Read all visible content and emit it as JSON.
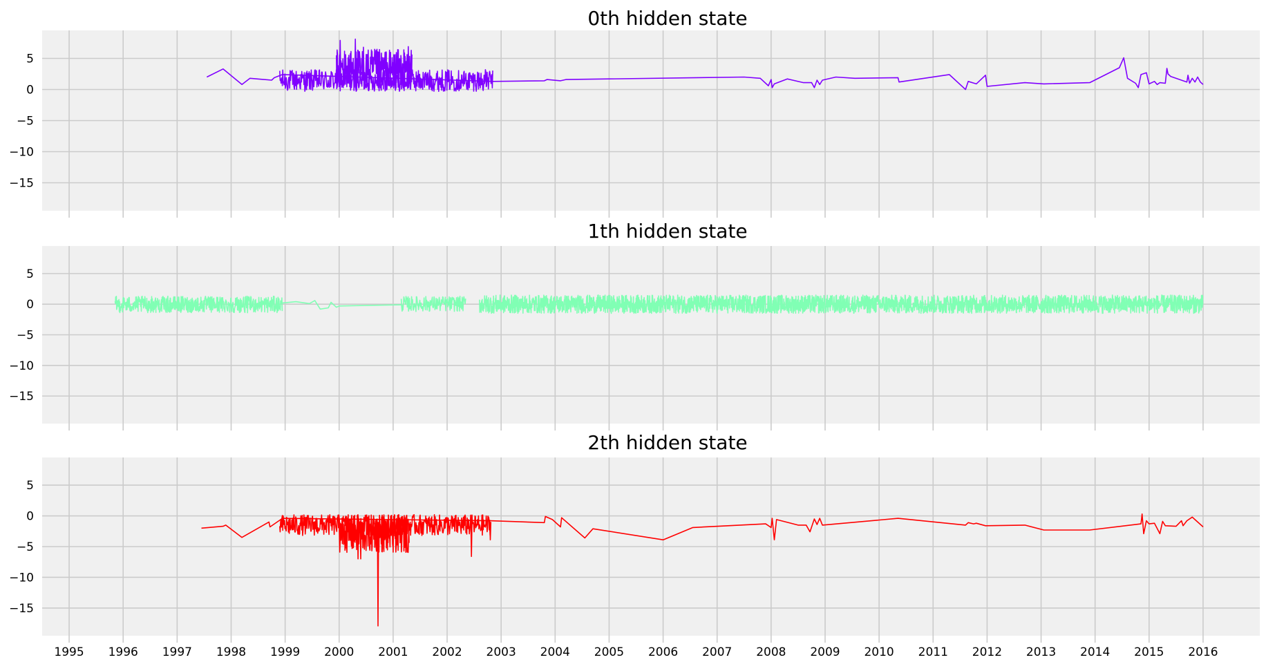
{
  "chart_data": [
    {
      "type": "line",
      "title": "0th hidden state",
      "color": "#8000ff",
      "ylim": [
        -19.5,
        9.5
      ],
      "yticks": [
        5,
        0,
        -5,
        -10,
        -15
      ],
      "ytick_labels": [
        "5",
        "0",
        "−5",
        "−10",
        "−15"
      ],
      "xlim": [
        1994.5,
        2017.05
      ],
      "xticks": [
        1995,
        1996,
        1997,
        1998,
        1999,
        2000,
        2001,
        2002,
        2003,
        2004,
        2005,
        2006,
        2007,
        2008,
        2009,
        2010,
        2011,
        2012,
        2013,
        2014,
        2015,
        2016
      ],
      "xtick_labels": [],
      "grid": true,
      "noise": [
        {
          "from": 1998.9,
          "to": 2002.85,
          "min": -0.3,
          "max": 3.2,
          "step": 0.008
        },
        {
          "from": 1999.95,
          "to": 2001.35,
          "min": -0.2,
          "max": 6.5,
          "step": 0.006
        }
      ],
      "spikes": [
        [
          2000.02,
          7.9
        ],
        [
          2000.3,
          8.1
        ],
        [
          2000.45,
          6.8
        ],
        [
          2000.75,
          5.9
        ],
        [
          2001.28,
          6.9
        ],
        [
          2000.18,
          5.5
        ]
      ],
      "x": [
        1997.55,
        1997.85,
        1998.2,
        1998.35,
        1998.75,
        1998.8,
        1998.95,
        2002.85,
        2003.8,
        2003.85,
        2004.1,
        2004.2,
        2007.5,
        2007.8,
        2007.95,
        2008.0,
        2008.02,
        2008.06,
        2008.3,
        2008.6,
        2008.75,
        2008.8,
        2008.85,
        2008.9,
        2008.95,
        2009.2,
        2009.55,
        2010.35,
        2010.37,
        2011.3,
        2011.6,
        2011.65,
        2011.8,
        2011.97,
        2012.0,
        2012.7,
        2013.05,
        2013.9,
        2014.45,
        2014.53,
        2014.6,
        2014.75,
        2014.8,
        2014.85,
        2014.95,
        2015.0,
        2015.1,
        2015.15,
        2015.2,
        2015.3,
        2015.33,
        2015.35,
        2015.4,
        2015.7,
        2015.72,
        2015.75,
        2015.8,
        2015.85,
        2015.9,
        2015.95,
        2016.0
      ],
      "y": [
        2.0,
        3.3,
        0.8,
        1.8,
        1.5,
        1.9,
        2.4,
        1.3,
        1.4,
        1.6,
        1.4,
        1.6,
        2.0,
        1.8,
        0.6,
        1.6,
        0.3,
        0.9,
        1.7,
        1.1,
        1.1,
        0.3,
        1.5,
        0.8,
        1.5,
        2.0,
        1.8,
        1.9,
        1.2,
        2.4,
        0.0,
        1.3,
        0.9,
        2.3,
        0.5,
        1.1,
        0.9,
        1.1,
        3.5,
        5.1,
        1.8,
        1.0,
        0.3,
        2.4,
        2.7,
        0.9,
        1.3,
        0.8,
        1.1,
        1.0,
        3.4,
        2.5,
        2.1,
        1.2,
        2.3,
        1.0,
        1.8,
        1.2,
        2.0,
        1.2,
        0.8
      ]
    },
    {
      "type": "line",
      "title": "1th hidden state",
      "color": "#80ffb4",
      "ylim": [
        -19.5,
        9.5
      ],
      "yticks": [
        5,
        0,
        -5,
        -10,
        -15
      ],
      "ytick_labels": [
        "5",
        "0",
        "−5",
        "−10",
        "−15"
      ],
      "xlim": [
        1994.5,
        2017.05
      ],
      "xticks": [
        1995,
        1996,
        1997,
        1998,
        1999,
        2000,
        2001,
        2002,
        2003,
        2004,
        2005,
        2006,
        2007,
        2008,
        2009,
        2010,
        2011,
        2012,
        2013,
        2014,
        2015,
        2016
      ],
      "xtick_labels": [],
      "grid": true,
      "noise": [
        {
          "from": 1995.85,
          "to": 1998.95,
          "min": -1.4,
          "max": 1.3,
          "step": 0.006
        },
        {
          "from": 2001.15,
          "to": 2002.35,
          "min": -1.2,
          "max": 1.3,
          "step": 0.008
        },
        {
          "from": 2002.6,
          "to": 2016.0,
          "min": -1.5,
          "max": 1.5,
          "step": 0.005
        }
      ],
      "spikes": [],
      "x": [
        1998.95,
        1999.2,
        1999.45,
        1999.55,
        1999.65,
        1999.8,
        1999.85,
        1999.95,
        2000.0,
        2001.15
      ],
      "y": [
        0.2,
        0.4,
        0.1,
        0.6,
        -0.8,
        -0.6,
        0.3,
        -0.5,
        -0.3,
        -0.1
      ]
    },
    {
      "type": "line",
      "title": "2th hidden state",
      "color": "#ff0000",
      "ylim": [
        -19.5,
        9.5
      ],
      "yticks": [
        5,
        0,
        -5,
        -10,
        -15
      ],
      "ytick_labels": [
        "5",
        "0",
        "−5",
        "−10",
        "−15"
      ],
      "xlim": [
        1994.5,
        2017.05
      ],
      "xticks": [
        1995,
        1996,
        1997,
        1998,
        1999,
        2000,
        2001,
        2002,
        2003,
        2004,
        2005,
        2006,
        2007,
        2008,
        2009,
        2010,
        2011,
        2012,
        2013,
        2014,
        2015,
        2016
      ],
      "xtick_labels": [
        "1995",
        "1996",
        "1997",
        "1998",
        "1999",
        "2000",
        "2001",
        "2002",
        "2003",
        "2004",
        "2005",
        "2006",
        "2007",
        "2008",
        "2009",
        "2010",
        "2011",
        "2012",
        "2013",
        "2014",
        "2015",
        "2016"
      ],
      "grid": true,
      "noise": [
        {
          "from": 1998.9,
          "to": 2002.8,
          "min": -3.2,
          "max": 0.2,
          "step": 0.008
        },
        {
          "from": 2000.0,
          "to": 2001.3,
          "min": -6.0,
          "max": 0.2,
          "step": 0.006
        }
      ],
      "spikes": [
        [
          2000.35,
          -7.0
        ],
        [
          2000.4,
          -7.0
        ],
        [
          2000.72,
          -17.9
        ],
        [
          2001.0,
          -5.9
        ],
        [
          2002.45,
          -6.6
        ],
        [
          2002.8,
          -3.9
        ]
      ],
      "x": [
        1997.45,
        1997.85,
        1997.9,
        1998.2,
        1998.7,
        1998.72,
        1998.95,
        2002.8,
        2003.8,
        2003.82,
        2003.95,
        2004.1,
        2004.12,
        2004.55,
        2004.7,
        2006.0,
        2006.55,
        2007.9,
        2008.0,
        2008.02,
        2008.06,
        2008.1,
        2008.5,
        2008.65,
        2008.72,
        2008.8,
        2008.85,
        2008.9,
        2008.95,
        2010.35,
        2011.6,
        2011.65,
        2011.75,
        2011.8,
        2011.97,
        2012.7,
        2013.05,
        2013.9,
        2014.85,
        2014.87,
        2014.9,
        2014.95,
        2015.0,
        2015.1,
        2015.2,
        2015.25,
        2015.3,
        2015.5,
        2015.6,
        2015.63,
        2015.7,
        2015.8,
        2015.85,
        2016.0
      ],
      "y": [
        -2.0,
        -1.7,
        -1.5,
        -3.5,
        -1.0,
        -1.8,
        -0.4,
        -0.8,
        -1.1,
        -0.1,
        -0.6,
        -1.8,
        -0.3,
        -3.6,
        -2.1,
        -3.9,
        -1.9,
        -1.3,
        -1.9,
        -0.4,
        -3.9,
        -0.6,
        -1.5,
        -1.5,
        -2.6,
        -0.5,
        -1.4,
        -0.4,
        -1.5,
        -0.4,
        -1.5,
        -1.1,
        -1.3,
        -1.2,
        -1.6,
        -1.5,
        -2.3,
        -2.3,
        -1.3,
        0.3,
        -2.9,
        -0.8,
        -1.3,
        -1.2,
        -2.9,
        -0.9,
        -1.6,
        -1.7,
        -0.8,
        -1.6,
        -0.8,
        -0.2,
        -0.6,
        -1.8
      ]
    }
  ]
}
